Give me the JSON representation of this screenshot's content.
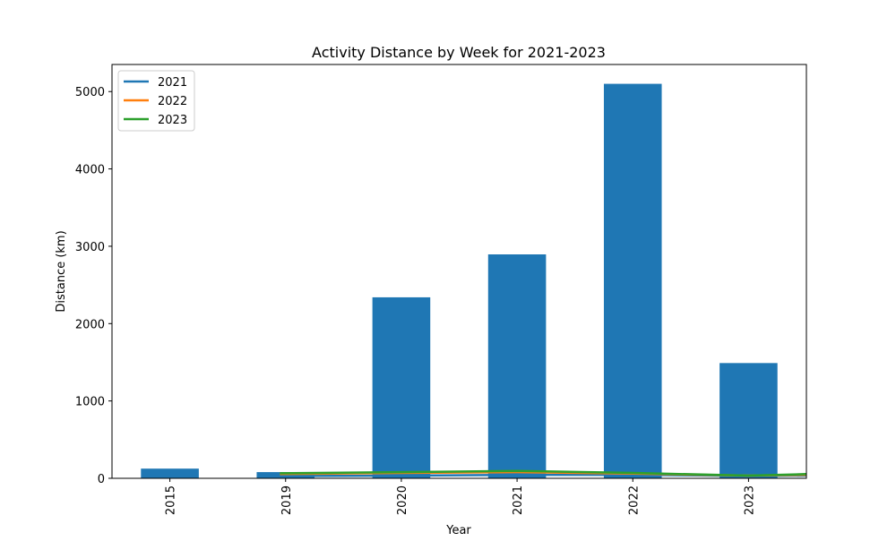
{
  "chart_data": {
    "type": "bar",
    "title": "Activity Distance by Week for 2021-2023",
    "xlabel": "Year",
    "ylabel": "Distance (km)",
    "ylim": [
      0,
      5350
    ],
    "yticks": [
      0,
      1000,
      2000,
      3000,
      4000,
      5000
    ],
    "categories": [
      "2015",
      "2019",
      "2020",
      "2021",
      "2022",
      "2023"
    ],
    "bar_series": {
      "name": "Distance",
      "color": "#1f77b4",
      "values": [
        125,
        80,
        2340,
        2895,
        5100,
        1490
      ]
    },
    "line_series": [
      {
        "name": "2021",
        "color": "#1f77b4",
        "points": [
          [
            0.95,
            30
          ],
          [
            2,
            35
          ],
          [
            3,
            45
          ],
          [
            4,
            45
          ],
          [
            5,
            30
          ],
          [
            5.5,
            35
          ]
        ]
      },
      {
        "name": "2022",
        "color": "#ff7f0e",
        "points": [
          [
            0.95,
            55
          ],
          [
            2,
            70
          ],
          [
            3,
            80
          ],
          [
            4,
            60
          ],
          [
            5,
            35
          ],
          [
            5.5,
            45
          ]
        ]
      },
      {
        "name": "2023",
        "color": "#2ca02c",
        "points": [
          [
            0.95,
            65
          ],
          [
            2,
            80
          ],
          [
            3,
            95
          ],
          [
            4,
            70
          ],
          [
            5,
            35
          ],
          [
            5.5,
            55
          ]
        ]
      }
    ],
    "legend": {
      "position": "top-left",
      "entries": [
        "2021",
        "2022",
        "2023"
      ]
    }
  }
}
